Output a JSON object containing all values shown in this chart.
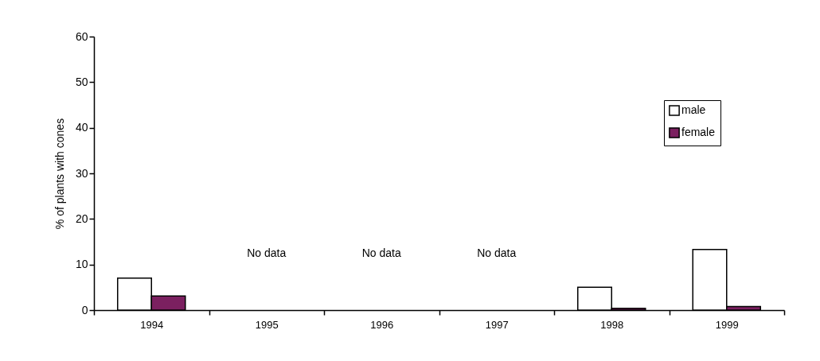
{
  "chart_data": {
    "type": "bar",
    "ylabel": "% of plants with cones",
    "categories": [
      "1994",
      "1995",
      "1996",
      "1997",
      "1998",
      "1999"
    ],
    "series": [
      {
        "name": "male",
        "color": "#ffffff",
        "values": [
          7,
          null,
          null,
          null,
          5,
          13.3
        ]
      },
      {
        "name": "female",
        "color": "#7b2060",
        "values": [
          3.1,
          null,
          null,
          null,
          0.4,
          0.8
        ]
      }
    ],
    "ylim": [
      0,
      60
    ],
    "yticks": [
      0,
      10,
      20,
      30,
      40,
      50,
      60
    ],
    "grid": false,
    "legend": "top right",
    "annotations": [
      "No data",
      "No data",
      "No data"
    ]
  }
}
